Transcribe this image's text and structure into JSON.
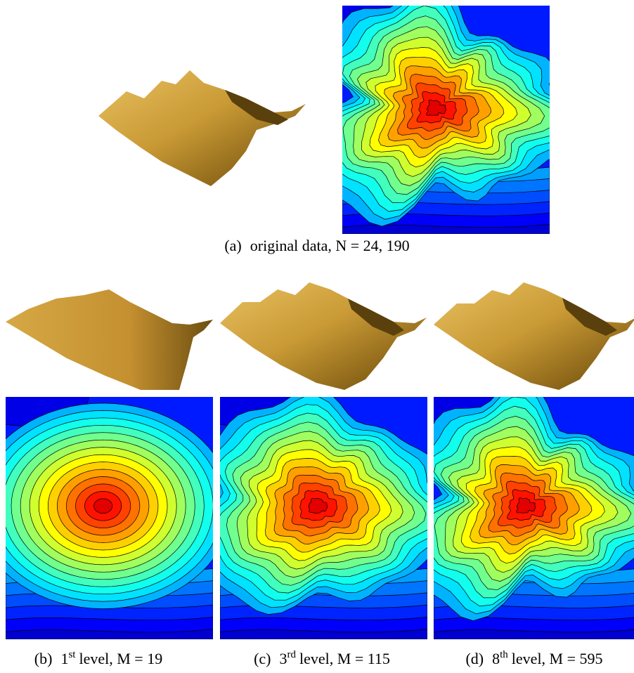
{
  "figure": {
    "panels": [
      {
        "label": "(a)",
        "caption": "original data, N = 24, 190"
      },
      {
        "label": "(b)",
        "ordinal": "1",
        "suffix": "st",
        "caption": "level, M = 19"
      },
      {
        "label": "(c)",
        "ordinal": "3",
        "suffix": "rd",
        "caption": "level, M = 115"
      },
      {
        "label": "(d)",
        "ordinal": "8",
        "suffix": "th",
        "caption": "level, M = 595"
      }
    ]
  }
}
